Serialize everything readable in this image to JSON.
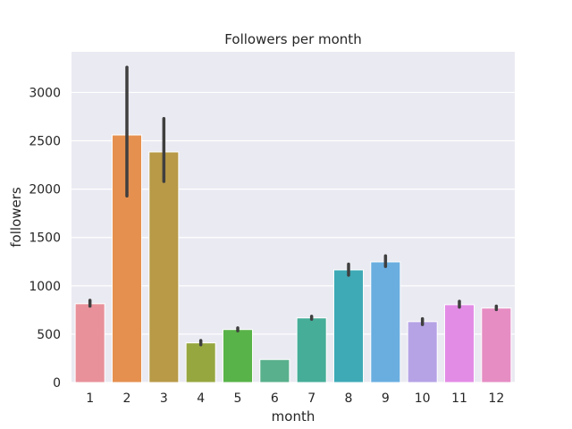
{
  "chart_data": {
    "type": "bar",
    "title": "Followers per month",
    "xlabel": "month",
    "ylabel": "followers",
    "categories": [
      "1",
      "2",
      "3",
      "4",
      "5",
      "6",
      "7",
      "8",
      "9",
      "10",
      "11",
      "12"
    ],
    "values": [
      815,
      2560,
      2385,
      410,
      548,
      238,
      668,
      1165,
      1248,
      630,
      805,
      770
    ],
    "error_low": [
      790,
      1930,
      2080,
      390,
      535,
      238,
      655,
      1110,
      1200,
      600,
      780,
      755
    ],
    "error_high": [
      850,
      3260,
      2730,
      435,
      565,
      238,
      685,
      1225,
      1310,
      660,
      840,
      790
    ],
    "ylim": [
      0,
      3420
    ],
    "yticks": [
      0,
      500,
      1000,
      1500,
      2000,
      2500,
      3000
    ],
    "grid": true,
    "colors": [
      "#e8919a",
      "#e6904f",
      "#b89a47",
      "#97a740",
      "#58b348",
      "#58b08c",
      "#46ad98",
      "#3eaab6",
      "#6aaee0",
      "#b6a3e6",
      "#e38ce6",
      "#e68dc3"
    ],
    "background": "#eaeaf2",
    "errorbar_color": "#3f3f3f"
  }
}
